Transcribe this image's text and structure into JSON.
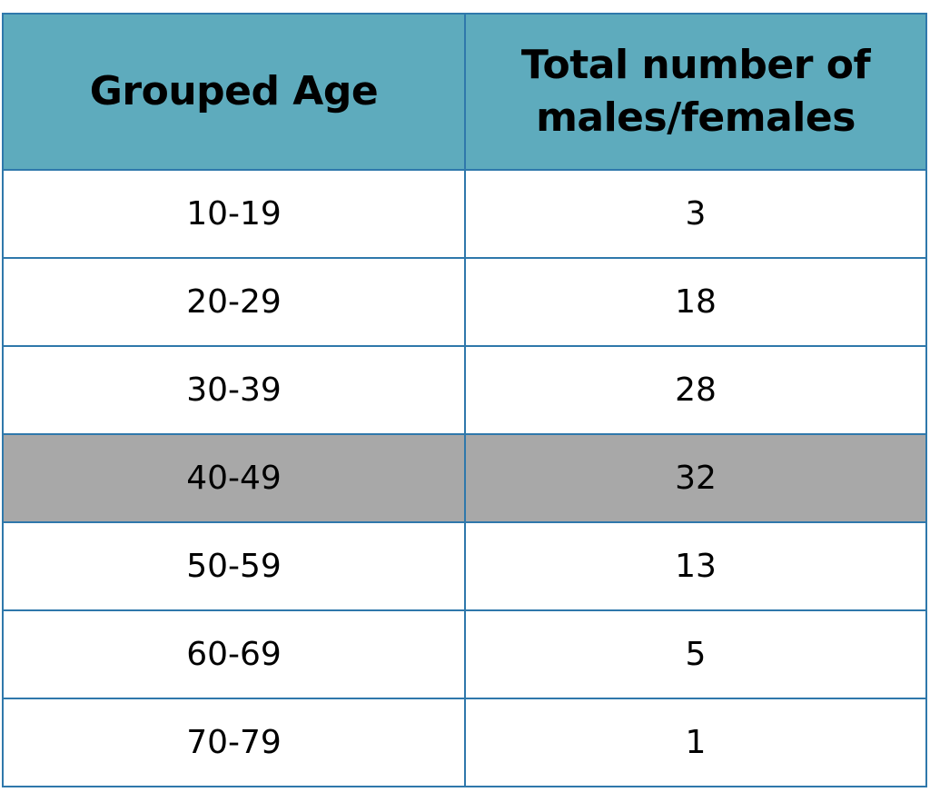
{
  "colors": {
    "header_bg": "#5eabbd",
    "border": "#2f78ab",
    "highlight_bg": "#a8a8a8"
  },
  "table": {
    "headers": [
      "Grouped Age",
      "Total number of males/females"
    ],
    "rows": [
      {
        "age": "10-19",
        "total": "3",
        "highlighted": false
      },
      {
        "age": "20-29",
        "total": "18",
        "highlighted": false
      },
      {
        "age": "30-39",
        "total": "28",
        "highlighted": false
      },
      {
        "age": "40-49",
        "total": "32",
        "highlighted": true
      },
      {
        "age": "50-59",
        "total": "13",
        "highlighted": false
      },
      {
        "age": "60-69",
        "total": "5",
        "highlighted": false
      },
      {
        "age": "70-79",
        "total": "1",
        "highlighted": false
      }
    ]
  }
}
